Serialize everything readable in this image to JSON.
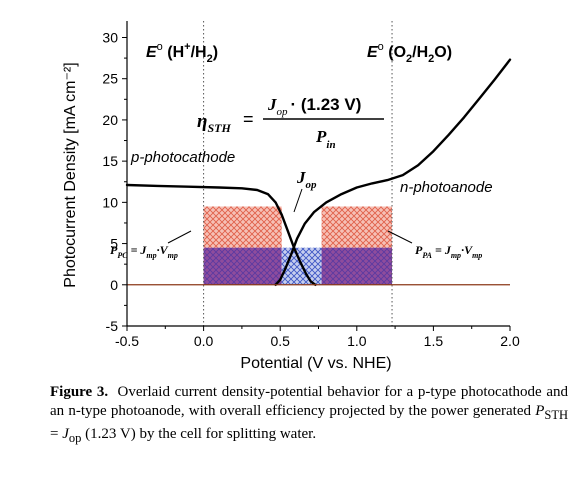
{
  "chart_data": {
    "type": "line",
    "xlabel": "Potential (V vs. NHE)",
    "ylabel": "Photocurrent Density [mA cm⁻²]",
    "xlim": [
      -0.5,
      2.0
    ],
    "ylim": [
      -5,
      32
    ],
    "x_ticks": [
      -0.5,
      0.0,
      0.5,
      1.0,
      1.5,
      2.0
    ],
    "x_tick_labels": [
      "-0.5",
      "0.0",
      "0.5",
      "1.0",
      "1.5",
      "2.0"
    ],
    "y_ticks": [
      -5,
      0,
      5,
      10,
      15,
      20,
      25,
      30
    ],
    "y_tick_labels": [
      "-5",
      "0",
      "5",
      "10",
      "15",
      "20",
      "25",
      "30"
    ],
    "grid": false,
    "series": [
      {
        "name": "p-photocathode",
        "x": [
          -0.5,
          -0.3,
          -0.1,
          0.1,
          0.25,
          0.35,
          0.42,
          0.47,
          0.51,
          0.55,
          0.59,
          0.63,
          0.67,
          0.7,
          0.73
        ],
        "y": [
          12.1,
          12.0,
          11.9,
          11.8,
          11.7,
          11.5,
          11.0,
          10.0,
          8.5,
          6.5,
          4.5,
          2.8,
          1.3,
          0.4,
          0.0
        ],
        "color": "#000000"
      },
      {
        "name": "n-photoanode",
        "x": [
          0.47,
          0.5,
          0.53,
          0.57,
          0.61,
          0.66,
          0.72,
          0.8,
          0.9,
          1.0,
          1.1,
          1.2,
          1.3,
          1.4,
          1.5,
          1.6,
          1.7,
          1.8,
          1.9,
          2.0
        ],
        "y": [
          0.0,
          0.6,
          1.8,
          3.6,
          5.6,
          7.4,
          8.8,
          10.0,
          11.0,
          11.8,
          12.3,
          12.7,
          13.3,
          14.5,
          16.2,
          18.2,
          20.3,
          22.6,
          24.9,
          27.3
        ]
      }
    ],
    "reference_lines": [
      {
        "x": 0.0,
        "label": "E° (H⁺/H₂)"
      },
      {
        "x": 1.23,
        "label": "E° (O₂/H₂O)"
      }
    ],
    "regions": [
      {
        "name": "P_PC",
        "x": [
          0.0,
          0.51
        ],
        "y": [
          4.5,
          9.5
        ],
        "fill": "#f4b3a8",
        "pattern": "#e0604a"
      },
      {
        "name": "P_PA",
        "x": [
          0.77,
          1.23
        ],
        "y": [
          4.5,
          9.5
        ],
        "fill": "#f4b3a8",
        "pattern": "#e0604a"
      },
      {
        "name": "overlap-left",
        "x": [
          0.0,
          0.51
        ],
        "y": [
          0.0,
          4.5
        ],
        "fill": "#9a4f9f",
        "pattern": "#5a3c9a"
      },
      {
        "name": "overlap-mid",
        "x": [
          0.51,
          0.77
        ],
        "y": [
          0.0,
          4.5
        ],
        "fill": "#aeb8e8",
        "pattern": "#3d57c4"
      },
      {
        "name": "overlap-right",
        "x": [
          0.77,
          1.23
        ],
        "y": [
          0.0,
          4.5
        ],
        "fill": "#9a4f9f",
        "pattern": "#5a3c9a"
      }
    ],
    "annotations": {
      "e_hydrogen": {
        "E": "E",
        "sup": "o",
        "rest": " (H",
        "sup2": "+",
        "mid": "/H",
        "sub": "2",
        "end": ")"
      },
      "e_oxygen": {
        "E": "E",
        "sup": "o",
        "rest": " (O",
        "sub": "2",
        "mid": "/H",
        "sub2": "2",
        "end": "O)"
      },
      "eta": {
        "symbol": "η",
        "sub": "STH",
        "eq": "=",
        "num_J": "J",
        "num_sub": "op",
        "num_rest": "· (1.23 V)",
        "den_P": "P",
        "den_sub": "in"
      },
      "p_photocathode": "p-photocathode",
      "n_photoanode": "n-photoanode",
      "j_op": {
        "J": "J",
        "sub": "op"
      },
      "p_pc": {
        "P": "P",
        "sub": "PC",
        "eq": " = J",
        "sub2": "mp",
        "dot": "·V",
        "sub3": "mp"
      },
      "p_pa": {
        "P": "P",
        "sub": "PA",
        "eq": " = J",
        "sub2": "mp",
        "dot": "·V",
        "sub3": "mp"
      }
    },
    "axis_color": "#000000",
    "zero_line_color": "#8b3a1a"
  },
  "caption": {
    "label": "Figure 3.",
    "text": "Overlaid current density-potential behavior for a p-type photocathode and an n-type photoanode, with overall efficiency projected by the power generated ",
    "formula_P": "P",
    "formula_P_sub": "STH",
    "formula_eq": " = ",
    "formula_J": "J",
    "formula_J_sub": "op",
    "formula_rest": " (1.23 V)",
    "text_end": " by the cell for splitting water."
  }
}
